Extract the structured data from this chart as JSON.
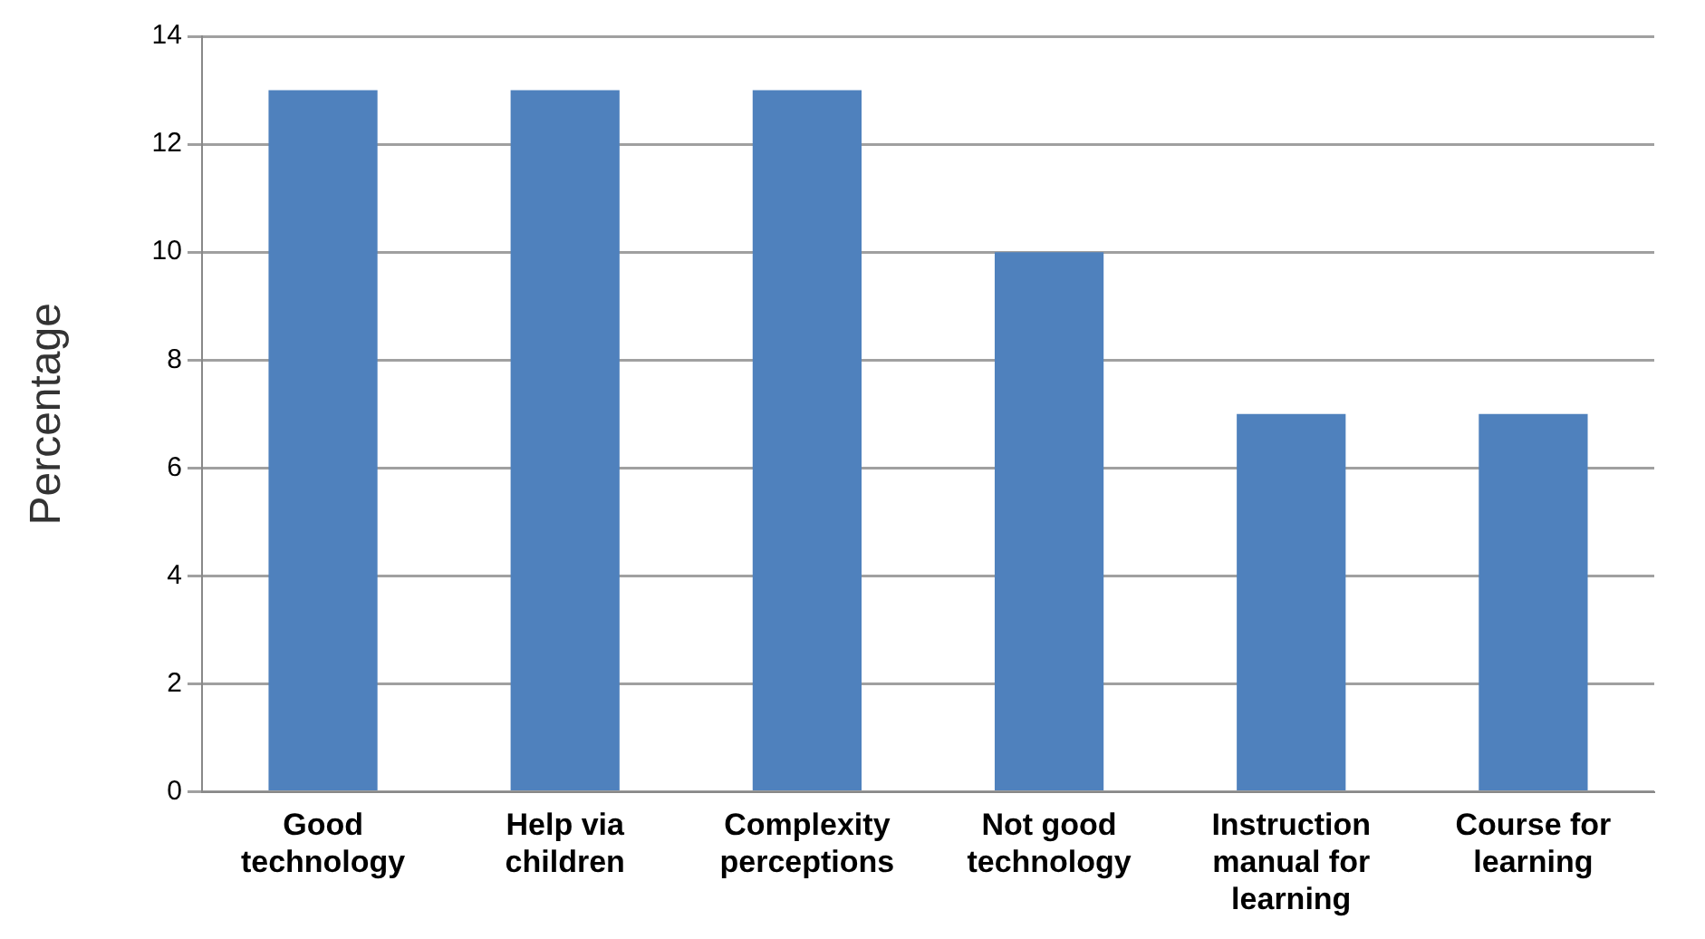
{
  "chart_data": {
    "type": "bar",
    "ylabel": "Percentage",
    "categories": [
      "Good technology",
      "Help via children",
      "Complexity perceptions",
      "Not good technology",
      "Instruction manual for learning",
      "Course for learning"
    ],
    "values": [
      13,
      13,
      13,
      10,
      7,
      7
    ],
    "color": "#4f81bd",
    "ylim": [
      0,
      14
    ],
    "yticks": [
      0,
      2,
      4,
      6,
      8,
      10,
      12,
      14
    ],
    "grid": "y",
    "legend": false
  }
}
